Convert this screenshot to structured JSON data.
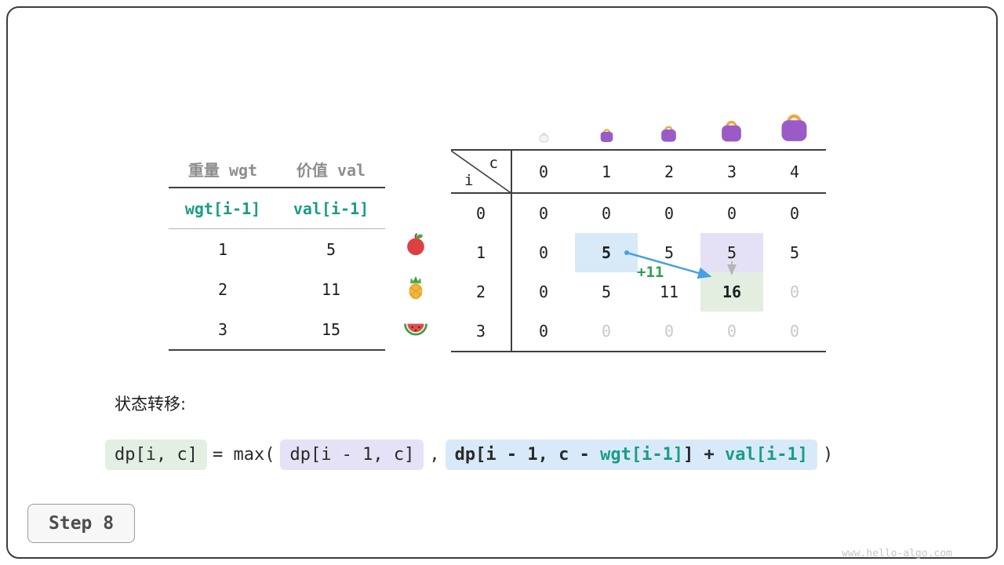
{
  "page": {
    "transition_heading": "状态转移:",
    "step_label": "Step 8",
    "watermark": "www.hello-algo.com"
  },
  "items_table": {
    "col_headers": [
      "重量 wgt",
      "价值 val"
    ],
    "formula_row": [
      "wgt[i-1]",
      "val[i-1]"
    ],
    "rows": [
      {
        "wgt": "1",
        "val": "5",
        "fruit": "apple"
      },
      {
        "wgt": "2",
        "val": "11",
        "fruit": "pineapple"
      },
      {
        "wgt": "3",
        "val": "15",
        "fruit": "watermelon"
      }
    ]
  },
  "dp_table": {
    "corner_col_var": "c",
    "corner_row_var": "i",
    "col_headers": [
      "0",
      "1",
      "2",
      "3",
      "4"
    ],
    "row_headers": [
      "0",
      "1",
      "2",
      "3"
    ],
    "bag_capacities": [
      "0",
      "1",
      "2",
      "3",
      "4"
    ],
    "cells": [
      [
        {
          "t": "0"
        },
        {
          "t": "0"
        },
        {
          "t": "0"
        },
        {
          "t": "0"
        },
        {
          "t": "0"
        }
      ],
      [
        {
          "t": "0"
        },
        {
          "t": "5",
          "s": "hl-blue bold"
        },
        {
          "t": "5"
        },
        {
          "t": "5",
          "s": "hl-lavender"
        },
        {
          "t": "5"
        }
      ],
      [
        {
          "t": "0"
        },
        {
          "t": "5"
        },
        {
          "t": "11"
        },
        {
          "t": "16",
          "s": "hl-green bold"
        },
        {
          "t": "0",
          "s": "faded"
        }
      ],
      [
        {
          "t": "0"
        },
        {
          "t": "0",
          "s": "faded"
        },
        {
          "t": "0",
          "s": "faded"
        },
        {
          "t": "0",
          "s": "faded"
        },
        {
          "t": "0",
          "s": "faded"
        }
      ]
    ],
    "annotation": {
      "transfer_value": "+11"
    }
  },
  "transition_formula": {
    "lhs": "dp[i, c]",
    "equals_max": "= max(",
    "option_keep": "dp[i - 1, c]",
    "comma": ",",
    "option_take_prefix": "dp[i - 1, c - ",
    "option_take_wgt": "wgt[i-1]",
    "option_take_mid": "] + ",
    "option_take_val": "val[i-1]",
    "close_paren": ")"
  },
  "colors": {
    "highlight_blue": "#d8e9f8",
    "highlight_lavender": "#e4e1f6",
    "highlight_green": "#e3eee1",
    "arrow_blue": "#45a0e6",
    "annotation_green": "#2f9e52",
    "code_teal": "#1a9c86",
    "bag_purple": "#9a5bc9",
    "bag_handle_orange": "#f0a73e"
  }
}
